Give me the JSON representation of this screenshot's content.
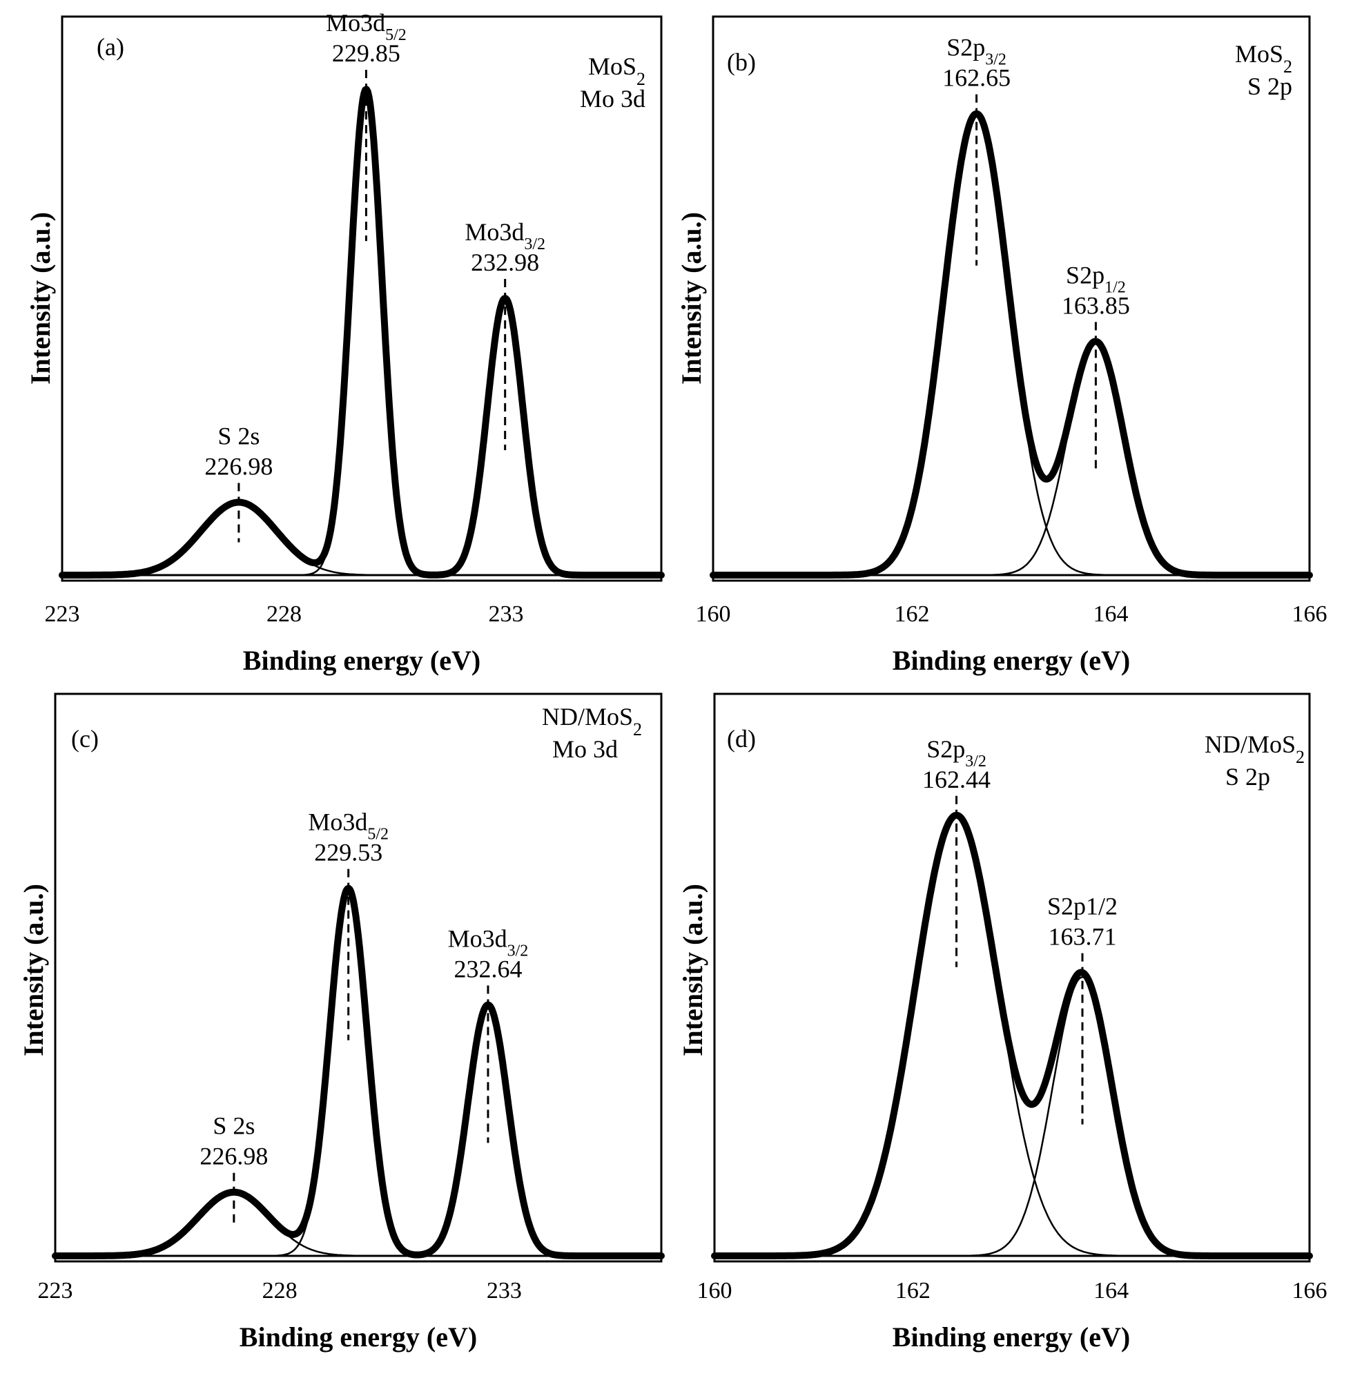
{
  "chart_data": [
    {
      "type": "line",
      "panel_label": "(a)",
      "info_lines": [
        "MoS2",
        "Mo 3d"
      ],
      "xlabel": "Binding energy (eV)",
      "ylabel": "Intensity (a.u.)",
      "xlim": [
        223,
        236.5
      ],
      "ylim": [
        0,
        1.15
      ],
      "x_ticks": [
        223,
        228,
        233
      ],
      "x_tick_labels": [
        "223",
        "228",
        "233"
      ],
      "components": [
        {
          "name": "S 2s",
          "center": 226.98,
          "height": 0.15,
          "sigma": 0.85
        },
        {
          "name": "Mo3d5/2",
          "center": 229.85,
          "height": 1.0,
          "sigma": 0.36
        },
        {
          "name": "Mo3d3/2",
          "center": 232.98,
          "height": 0.57,
          "sigma": 0.4
        }
      ],
      "annotations": [
        {
          "main": "S 2s",
          "sub": "",
          "value": "226.98",
          "x": 226.98
        },
        {
          "main": "Mo3d",
          "sub": "5/2",
          "value": "229.85",
          "x": 229.85
        },
        {
          "main": "Mo3d",
          "sub": "3/2",
          "value": "232.98",
          "x": 232.98
        }
      ]
    },
    {
      "type": "line",
      "panel_label": "(b)",
      "info_lines": [
        "MoS2",
        "S 2p"
      ],
      "xlabel": "Binding energy (eV)",
      "ylabel": "Intensity (a.u.)",
      "xlim": [
        160,
        166
      ],
      "ylim": [
        0,
        1.15
      ],
      "x_ticks": [
        160,
        162,
        164,
        166
      ],
      "x_tick_labels": [
        "160",
        "162",
        "164",
        "166"
      ],
      "components": [
        {
          "name": "S2p3/2",
          "center": 162.65,
          "height": 0.95,
          "sigma": 0.33
        },
        {
          "name": "S2p1/2",
          "center": 163.85,
          "height": 0.48,
          "sigma": 0.28
        }
      ],
      "annotations": [
        {
          "main": "S2p",
          "sub": "3/2",
          "value": "162.65",
          "x": 162.65
        },
        {
          "main": "S2p",
          "sub": "1/2",
          "value": "163.85",
          "x": 163.85
        }
      ]
    },
    {
      "type": "line",
      "panel_label": "(c)",
      "info_lines": [
        "ND/MoS2",
        "Mo 3d"
      ],
      "xlabel": "Binding energy (eV)",
      "ylabel": "Intensity (a.u.)",
      "xlim": [
        223,
        236.5
      ],
      "ylim": [
        0,
        1.5
      ],
      "x_ticks": [
        223,
        228,
        233
      ],
      "x_tick_labels": [
        "223",
        "228",
        "233"
      ],
      "components": [
        {
          "name": "S 2s",
          "center": 226.98,
          "height": 0.17,
          "sigma": 0.8
        },
        {
          "name": "Mo3d5/2",
          "center": 229.53,
          "height": 0.98,
          "sigma": 0.42
        },
        {
          "name": "Mo3d3/2",
          "center": 232.64,
          "height": 0.67,
          "sigma": 0.45
        }
      ],
      "annotations": [
        {
          "main": "S 2s",
          "sub": "",
          "value": "226.98",
          "x": 226.98
        },
        {
          "main": "Mo3d",
          "sub": "5/2",
          "value": "229.53",
          "x": 229.53
        },
        {
          "main": "Mo3d",
          "sub": "3/2",
          "value": "232.64",
          "x": 232.64
        }
      ]
    },
    {
      "type": "line",
      "panel_label": "(d)",
      "info_lines": [
        "ND/MoS2",
        "S 2p"
      ],
      "xlabel": "Binding energy (eV)",
      "ylabel": "Intensity (a.u.)",
      "xlim": [
        160,
        166
      ],
      "ylim": [
        0,
        1.25
      ],
      "x_ticks": [
        160,
        162,
        164,
        166
      ],
      "x_tick_labels": [
        "160",
        "162",
        "164",
        "166"
      ],
      "components": [
        {
          "name": "S2p3/2",
          "center": 162.44,
          "height": 0.98,
          "sigma": 0.42
        },
        {
          "name": "S2p1/2",
          "center": 163.71,
          "height": 0.62,
          "sigma": 0.3
        }
      ],
      "annotations": [
        {
          "main": "S2p",
          "sub": "3/2",
          "value": "162.44",
          "x": 162.44
        },
        {
          "main": "S2p1/2",
          "sub": "",
          "value": "163.71",
          "x": 163.71
        }
      ]
    }
  ]
}
